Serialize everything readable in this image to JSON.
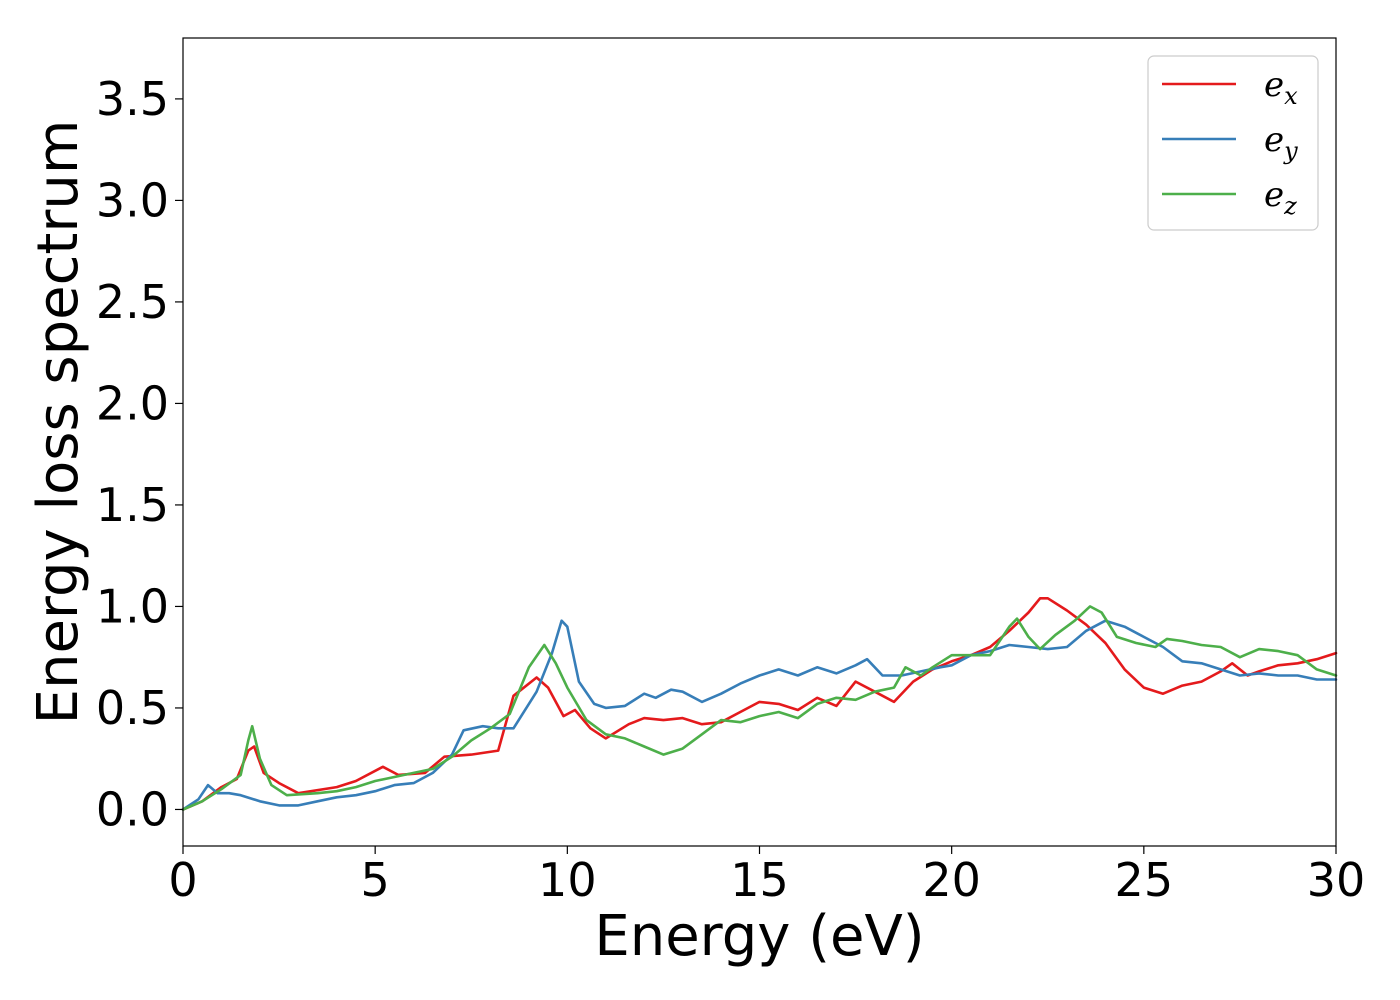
{
  "chart_data": {
    "type": "line",
    "title": "",
    "xlabel": "Energy (eV)",
    "ylabel": "Energy loss spectrum",
    "xlim": [
      0,
      30
    ],
    "ylim": [
      -0.18,
      3.8
    ],
    "xticks": [
      0,
      5,
      10,
      15,
      20,
      25,
      30
    ],
    "yticks": [
      0.0,
      0.5,
      1.0,
      1.5,
      2.0,
      2.5,
      3.0,
      3.5
    ],
    "xtick_labels": [
      "0",
      "5",
      "10",
      "15",
      "20",
      "25",
      "30"
    ],
    "ytick_labels": [
      "0.0",
      "0.5",
      "1.0",
      "1.5",
      "2.0",
      "2.5",
      "3.0",
      "3.5"
    ],
    "grid": false,
    "legend_position": "top-right",
    "series": [
      {
        "name": "e",
        "subscript": "x",
        "color": "#e41a1c",
        "points": [
          [
            0,
            0
          ],
          [
            0.5,
            0.04
          ],
          [
            1,
            0.11
          ],
          [
            1.4,
            0.15
          ],
          [
            1.7,
            0.29
          ],
          [
            1.85,
            0.31
          ],
          [
            2.1,
            0.18
          ],
          [
            2.5,
            0.13
          ],
          [
            3,
            0.08
          ],
          [
            4,
            0.11
          ],
          [
            4.5,
            0.14
          ],
          [
            5.2,
            0.21
          ],
          [
            5.6,
            0.17
          ],
          [
            6.3,
            0.18
          ],
          [
            6.8,
            0.26
          ],
          [
            7.5,
            0.27
          ],
          [
            8.2,
            0.29
          ],
          [
            8.6,
            0.56
          ],
          [
            9.2,
            0.65
          ],
          [
            9.5,
            0.6
          ],
          [
            9.9,
            0.46
          ],
          [
            10.2,
            0.49
          ],
          [
            10.6,
            0.4
          ],
          [
            11,
            0.35
          ],
          [
            11.6,
            0.42
          ],
          [
            12,
            0.45
          ],
          [
            12.5,
            0.44
          ],
          [
            13,
            0.45
          ],
          [
            13.5,
            0.42
          ],
          [
            14,
            0.43
          ],
          [
            14.5,
            0.48
          ],
          [
            15,
            0.53
          ],
          [
            15.5,
            0.52
          ],
          [
            16,
            0.49
          ],
          [
            16.5,
            0.55
          ],
          [
            17,
            0.51
          ],
          [
            17.5,
            0.63
          ],
          [
            18,
            0.58
          ],
          [
            18.5,
            0.53
          ],
          [
            19,
            0.63
          ],
          [
            19.5,
            0.69
          ],
          [
            20,
            0.73
          ],
          [
            20.5,
            0.76
          ],
          [
            21,
            0.8
          ],
          [
            21.5,
            0.88
          ],
          [
            22,
            0.97
          ],
          [
            22.3,
            1.04
          ],
          [
            22.5,
            1.04
          ],
          [
            23,
            0.98
          ],
          [
            23.5,
            0.91
          ],
          [
            24,
            0.82
          ],
          [
            24.5,
            0.69
          ],
          [
            25,
            0.6
          ],
          [
            25.5,
            0.57
          ],
          [
            26,
            0.61
          ],
          [
            26.5,
            0.63
          ],
          [
            27,
            0.68
          ],
          [
            27.3,
            0.72
          ],
          [
            27.7,
            0.66
          ],
          [
            28,
            0.68
          ],
          [
            28.5,
            0.71
          ],
          [
            29,
            0.72
          ],
          [
            29.5,
            0.74
          ],
          [
            30,
            0.77
          ]
        ]
      },
      {
        "name": "e",
        "subscript": "y",
        "color": "#377eb8",
        "points": [
          [
            0,
            0
          ],
          [
            0.4,
            0.05
          ],
          [
            0.65,
            0.12
          ],
          [
            0.9,
            0.08
          ],
          [
            1.2,
            0.08
          ],
          [
            1.5,
            0.07
          ],
          [
            2,
            0.04
          ],
          [
            2.5,
            0.02
          ],
          [
            3,
            0.02
          ],
          [
            3.5,
            0.04
          ],
          [
            4,
            0.06
          ],
          [
            4.5,
            0.07
          ],
          [
            5,
            0.09
          ],
          [
            5.5,
            0.12
          ],
          [
            6,
            0.13
          ],
          [
            6.5,
            0.18
          ],
          [
            7,
            0.27
          ],
          [
            7.3,
            0.39
          ],
          [
            7.8,
            0.41
          ],
          [
            8.2,
            0.4
          ],
          [
            8.6,
            0.4
          ],
          [
            9.2,
            0.58
          ],
          [
            9.6,
            0.77
          ],
          [
            9.85,
            0.93
          ],
          [
            10,
            0.9
          ],
          [
            10.3,
            0.63
          ],
          [
            10.7,
            0.52
          ],
          [
            11,
            0.5
          ],
          [
            11.5,
            0.51
          ],
          [
            12,
            0.57
          ],
          [
            12.3,
            0.55
          ],
          [
            12.7,
            0.59
          ],
          [
            13,
            0.58
          ],
          [
            13.5,
            0.53
          ],
          [
            14,
            0.57
          ],
          [
            14.5,
            0.62
          ],
          [
            15,
            0.66
          ],
          [
            15.5,
            0.69
          ],
          [
            16,
            0.66
          ],
          [
            16.5,
            0.7
          ],
          [
            17,
            0.67
          ],
          [
            17.5,
            0.71
          ],
          [
            17.8,
            0.74
          ],
          [
            18.2,
            0.66
          ],
          [
            18.7,
            0.66
          ],
          [
            19.2,
            0.68
          ],
          [
            19.7,
            0.7
          ],
          [
            20,
            0.71
          ],
          [
            20.5,
            0.76
          ],
          [
            21,
            0.78
          ],
          [
            21.5,
            0.81
          ],
          [
            22,
            0.8
          ],
          [
            22.5,
            0.79
          ],
          [
            23,
            0.8
          ],
          [
            23.5,
            0.88
          ],
          [
            24,
            0.93
          ],
          [
            24.5,
            0.9
          ],
          [
            25,
            0.85
          ],
          [
            25.5,
            0.8
          ],
          [
            26,
            0.73
          ],
          [
            26.5,
            0.72
          ],
          [
            27,
            0.69
          ],
          [
            27.5,
            0.66
          ],
          [
            28,
            0.67
          ],
          [
            28.5,
            0.66
          ],
          [
            29,
            0.66
          ],
          [
            29.5,
            0.64
          ],
          [
            30,
            0.64
          ]
        ]
      },
      {
        "name": "e",
        "subscript": "z",
        "color": "#4daf4a",
        "points": [
          [
            0,
            0
          ],
          [
            0.5,
            0.04
          ],
          [
            1,
            0.1
          ],
          [
            1.5,
            0.17
          ],
          [
            1.7,
            0.34
          ],
          [
            1.8,
            0.41
          ],
          [
            2,
            0.25
          ],
          [
            2.3,
            0.12
          ],
          [
            2.7,
            0.07
          ],
          [
            3.5,
            0.08
          ],
          [
            4,
            0.09
          ],
          [
            4.5,
            0.11
          ],
          [
            5,
            0.14
          ],
          [
            5.5,
            0.16
          ],
          [
            6,
            0.18
          ],
          [
            6.5,
            0.2
          ],
          [
            7,
            0.26
          ],
          [
            7.5,
            0.34
          ],
          [
            8,
            0.4
          ],
          [
            8.5,
            0.47
          ],
          [
            9,
            0.7
          ],
          [
            9.4,
            0.81
          ],
          [
            9.7,
            0.72
          ],
          [
            10,
            0.6
          ],
          [
            10.5,
            0.44
          ],
          [
            11,
            0.37
          ],
          [
            11.5,
            0.35
          ],
          [
            12,
            0.31
          ],
          [
            12.5,
            0.27
          ],
          [
            13,
            0.3
          ],
          [
            13.5,
            0.37
          ],
          [
            14,
            0.44
          ],
          [
            14.5,
            0.43
          ],
          [
            15,
            0.46
          ],
          [
            15.5,
            0.48
          ],
          [
            16,
            0.45
          ],
          [
            16.5,
            0.52
          ],
          [
            17,
            0.55
          ],
          [
            17.5,
            0.54
          ],
          [
            18,
            0.58
          ],
          [
            18.5,
            0.6
          ],
          [
            18.8,
            0.7
          ],
          [
            19.2,
            0.66
          ],
          [
            19.5,
            0.7
          ],
          [
            20,
            0.76
          ],
          [
            20.5,
            0.76
          ],
          [
            21,
            0.76
          ],
          [
            21.5,
            0.9
          ],
          [
            21.7,
            0.94
          ],
          [
            22,
            0.85
          ],
          [
            22.3,
            0.79
          ],
          [
            22.7,
            0.86
          ],
          [
            23.2,
            0.93
          ],
          [
            23.6,
            1.0
          ],
          [
            23.9,
            0.97
          ],
          [
            24.3,
            0.85
          ],
          [
            24.8,
            0.82
          ],
          [
            25.3,
            0.8
          ],
          [
            25.6,
            0.84
          ],
          [
            26,
            0.83
          ],
          [
            26.5,
            0.81
          ],
          [
            27,
            0.8
          ],
          [
            27.5,
            0.75
          ],
          [
            28,
            0.79
          ],
          [
            28.5,
            0.78
          ],
          [
            29,
            0.76
          ],
          [
            29.5,
            0.69
          ],
          [
            30,
            0.66
          ]
        ]
      }
    ]
  }
}
